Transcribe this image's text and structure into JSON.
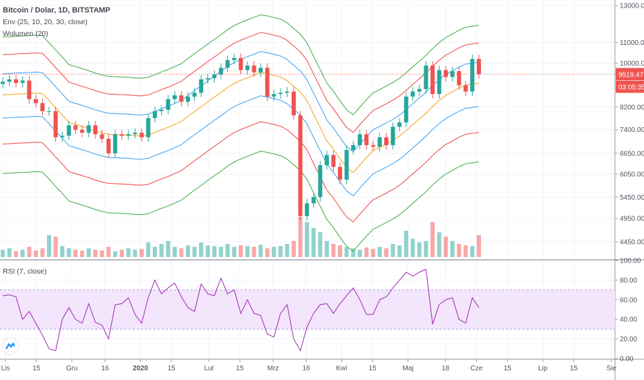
{
  "header": {
    "symbol_title": "Bitcoin / Dolar, 1D, BITSTAMP",
    "envelope_label": "Env (25, 10, 20, 30, close)",
    "volume_label": "Wolumen (20)",
    "rsi_label": "RSI (7, close)"
  },
  "colors": {
    "up": "#26a69a",
    "down": "#ef5350",
    "basis": "#f5a623",
    "band1": "#42a5f5",
    "band2": "#ef5350",
    "band3": "#4caf50",
    "rsi": "#9c27b0",
    "rsi_fill": "#f3e5fb",
    "price_label": "#ef5350"
  },
  "chart_data": [
    {
      "type": "candlestick",
      "title": "Bitcoin / Dolar, 1D, BITSTAMP",
      "x_step_days": 3,
      "close": [
        9200,
        9300,
        9150,
        9250,
        8500,
        8350,
        8050,
        8050,
        7150,
        7200,
        7550,
        7400,
        7300,
        7550,
        7250,
        7100,
        6650,
        7250,
        7200,
        7250,
        7300,
        7150,
        7800,
        8050,
        8100,
        8500,
        8650,
        8400,
        8600,
        8750,
        9300,
        9350,
        9500,
        9800,
        10150,
        10250,
        9700,
        9900,
        9600,
        9800,
        8600,
        8700,
        8750,
        8800,
        7900,
        5000,
        5300,
        5450,
        6300,
        6600,
        6250,
        5900,
        6750,
        6900,
        7250,
        6900,
        6850,
        7150,
        6900,
        7500,
        7650,
        8600,
        8800,
        8900,
        9900,
        8700,
        9700,
        9400,
        9650,
        9050,
        8800,
        10200,
        9519.47
      ],
      "envelope": {
        "length": 25,
        "offsets_percent": [
          10,
          20,
          30
        ],
        "basis": [
          8670,
          8680,
          8700,
          8710,
          8720,
          8740,
          8720,
          8450,
          8170,
          7920,
          7650,
          7580,
          7510,
          7440,
          7360,
          7300,
          7250,
          7240,
          7230,
          7220,
          7200,
          7190,
          7220,
          7310,
          7400,
          7480,
          7580,
          7680,
          7860,
          8040,
          8210,
          8400,
          8580,
          8760,
          8960,
          9130,
          9260,
          9370,
          9480,
          9590,
          9540,
          9470,
          9400,
          9250,
          9010,
          8780,
          8450,
          7940,
          7480,
          7040,
          6780,
          6490,
          6230,
          6090,
          6310,
          6520,
          6730,
          6830,
          6940,
          7050,
          7190,
          7370,
          7570,
          7770,
          7980,
          8230,
          8450,
          8650,
          8790,
          8940,
          9060,
          9100,
          9140
        ]
      },
      "volume": [
        10,
        12,
        8,
        10,
        14,
        9,
        12,
        30,
        28,
        15,
        12,
        10,
        9,
        12,
        10,
        9,
        14,
        8,
        10,
        12,
        10,
        11,
        20,
        14,
        18,
        22,
        14,
        12,
        16,
        14,
        20,
        16,
        15,
        14,
        18,
        14,
        16,
        15,
        14,
        17,
        12,
        14,
        15,
        18,
        22,
        55,
        48,
        40,
        34,
        22,
        18,
        16,
        14,
        12,
        10,
        13,
        11,
        14,
        12,
        18,
        16,
        36,
        25,
        20,
        22,
        48,
        34,
        28,
        22,
        18,
        16,
        15,
        30
      ],
      "y_scale": "log",
      "ylim": [
        4200,
        13500
      ],
      "y_ticks": [
        13000,
        11000,
        10000,
        8200,
        7400,
        6650,
        6050,
        5450,
        4950,
        4450
      ],
      "y_tick_labels": [
        "13000.00",
        "11000.00",
        "10000.00",
        "8200.00",
        "7400.00",
        "6650.00",
        "6050.00",
        "5450.00",
        "4950.00",
        "4450.00"
      ],
      "last_price": 9519.47,
      "last_price_label": "9519.47",
      "countdown": "03:05:35"
    },
    {
      "type": "line",
      "title": "RSI (7, close)",
      "x_step_days": 3,
      "values": [
        64,
        65,
        63,
        40,
        48,
        36,
        24,
        10,
        8,
        40,
        52,
        40,
        36,
        56,
        37,
        34,
        20,
        55,
        56,
        62,
        45,
        36,
        62,
        80,
        66,
        72,
        77,
        63,
        52,
        48,
        76,
        66,
        64,
        82,
        66,
        70,
        46,
        60,
        46,
        44,
        25,
        22,
        46,
        55,
        20,
        8,
        32,
        46,
        55,
        56,
        46,
        56,
        64,
        72,
        60,
        45,
        45,
        60,
        63,
        72,
        80,
        88,
        84,
        88,
        91,
        35,
        55,
        60,
        62,
        40,
        36,
        62,
        52
      ],
      "ylim": [
        0,
        100
      ],
      "bands": [
        30,
        70
      ],
      "y_ticks": [
        100,
        80,
        60,
        40,
        20,
        0
      ],
      "y_tick_labels": [
        "100.00",
        "80.00",
        "60.00",
        "40.00",
        "20.00",
        "0.00"
      ]
    }
  ],
  "x_axis": {
    "ticks": [
      {
        "day": 0,
        "label": "Lis"
      },
      {
        "day": 14,
        "label": "15"
      },
      {
        "day": 30,
        "label": "Gru"
      },
      {
        "day": 45,
        "label": "16"
      },
      {
        "day": 61,
        "label": "2020"
      },
      {
        "day": 75,
        "label": "15"
      },
      {
        "day": 92,
        "label": "Lut"
      },
      {
        "day": 106,
        "label": "15"
      },
      {
        "day": 121,
        "label": "Mrz"
      },
      {
        "day": 136,
        "label": "16"
      },
      {
        "day": 152,
        "label": "Kwi"
      },
      {
        "day": 166,
        "label": "15"
      },
      {
        "day": 182,
        "label": "Maj"
      },
      {
        "day": 199,
        "label": "18"
      },
      {
        "day": 213,
        "label": "Cze"
      },
      {
        "day": 227,
        "label": "15"
      },
      {
        "day": 243,
        "label": "Lip"
      },
      {
        "day": 257,
        "label": "15"
      },
      {
        "day": 274,
        "label": "Sie"
      }
    ]
  }
}
